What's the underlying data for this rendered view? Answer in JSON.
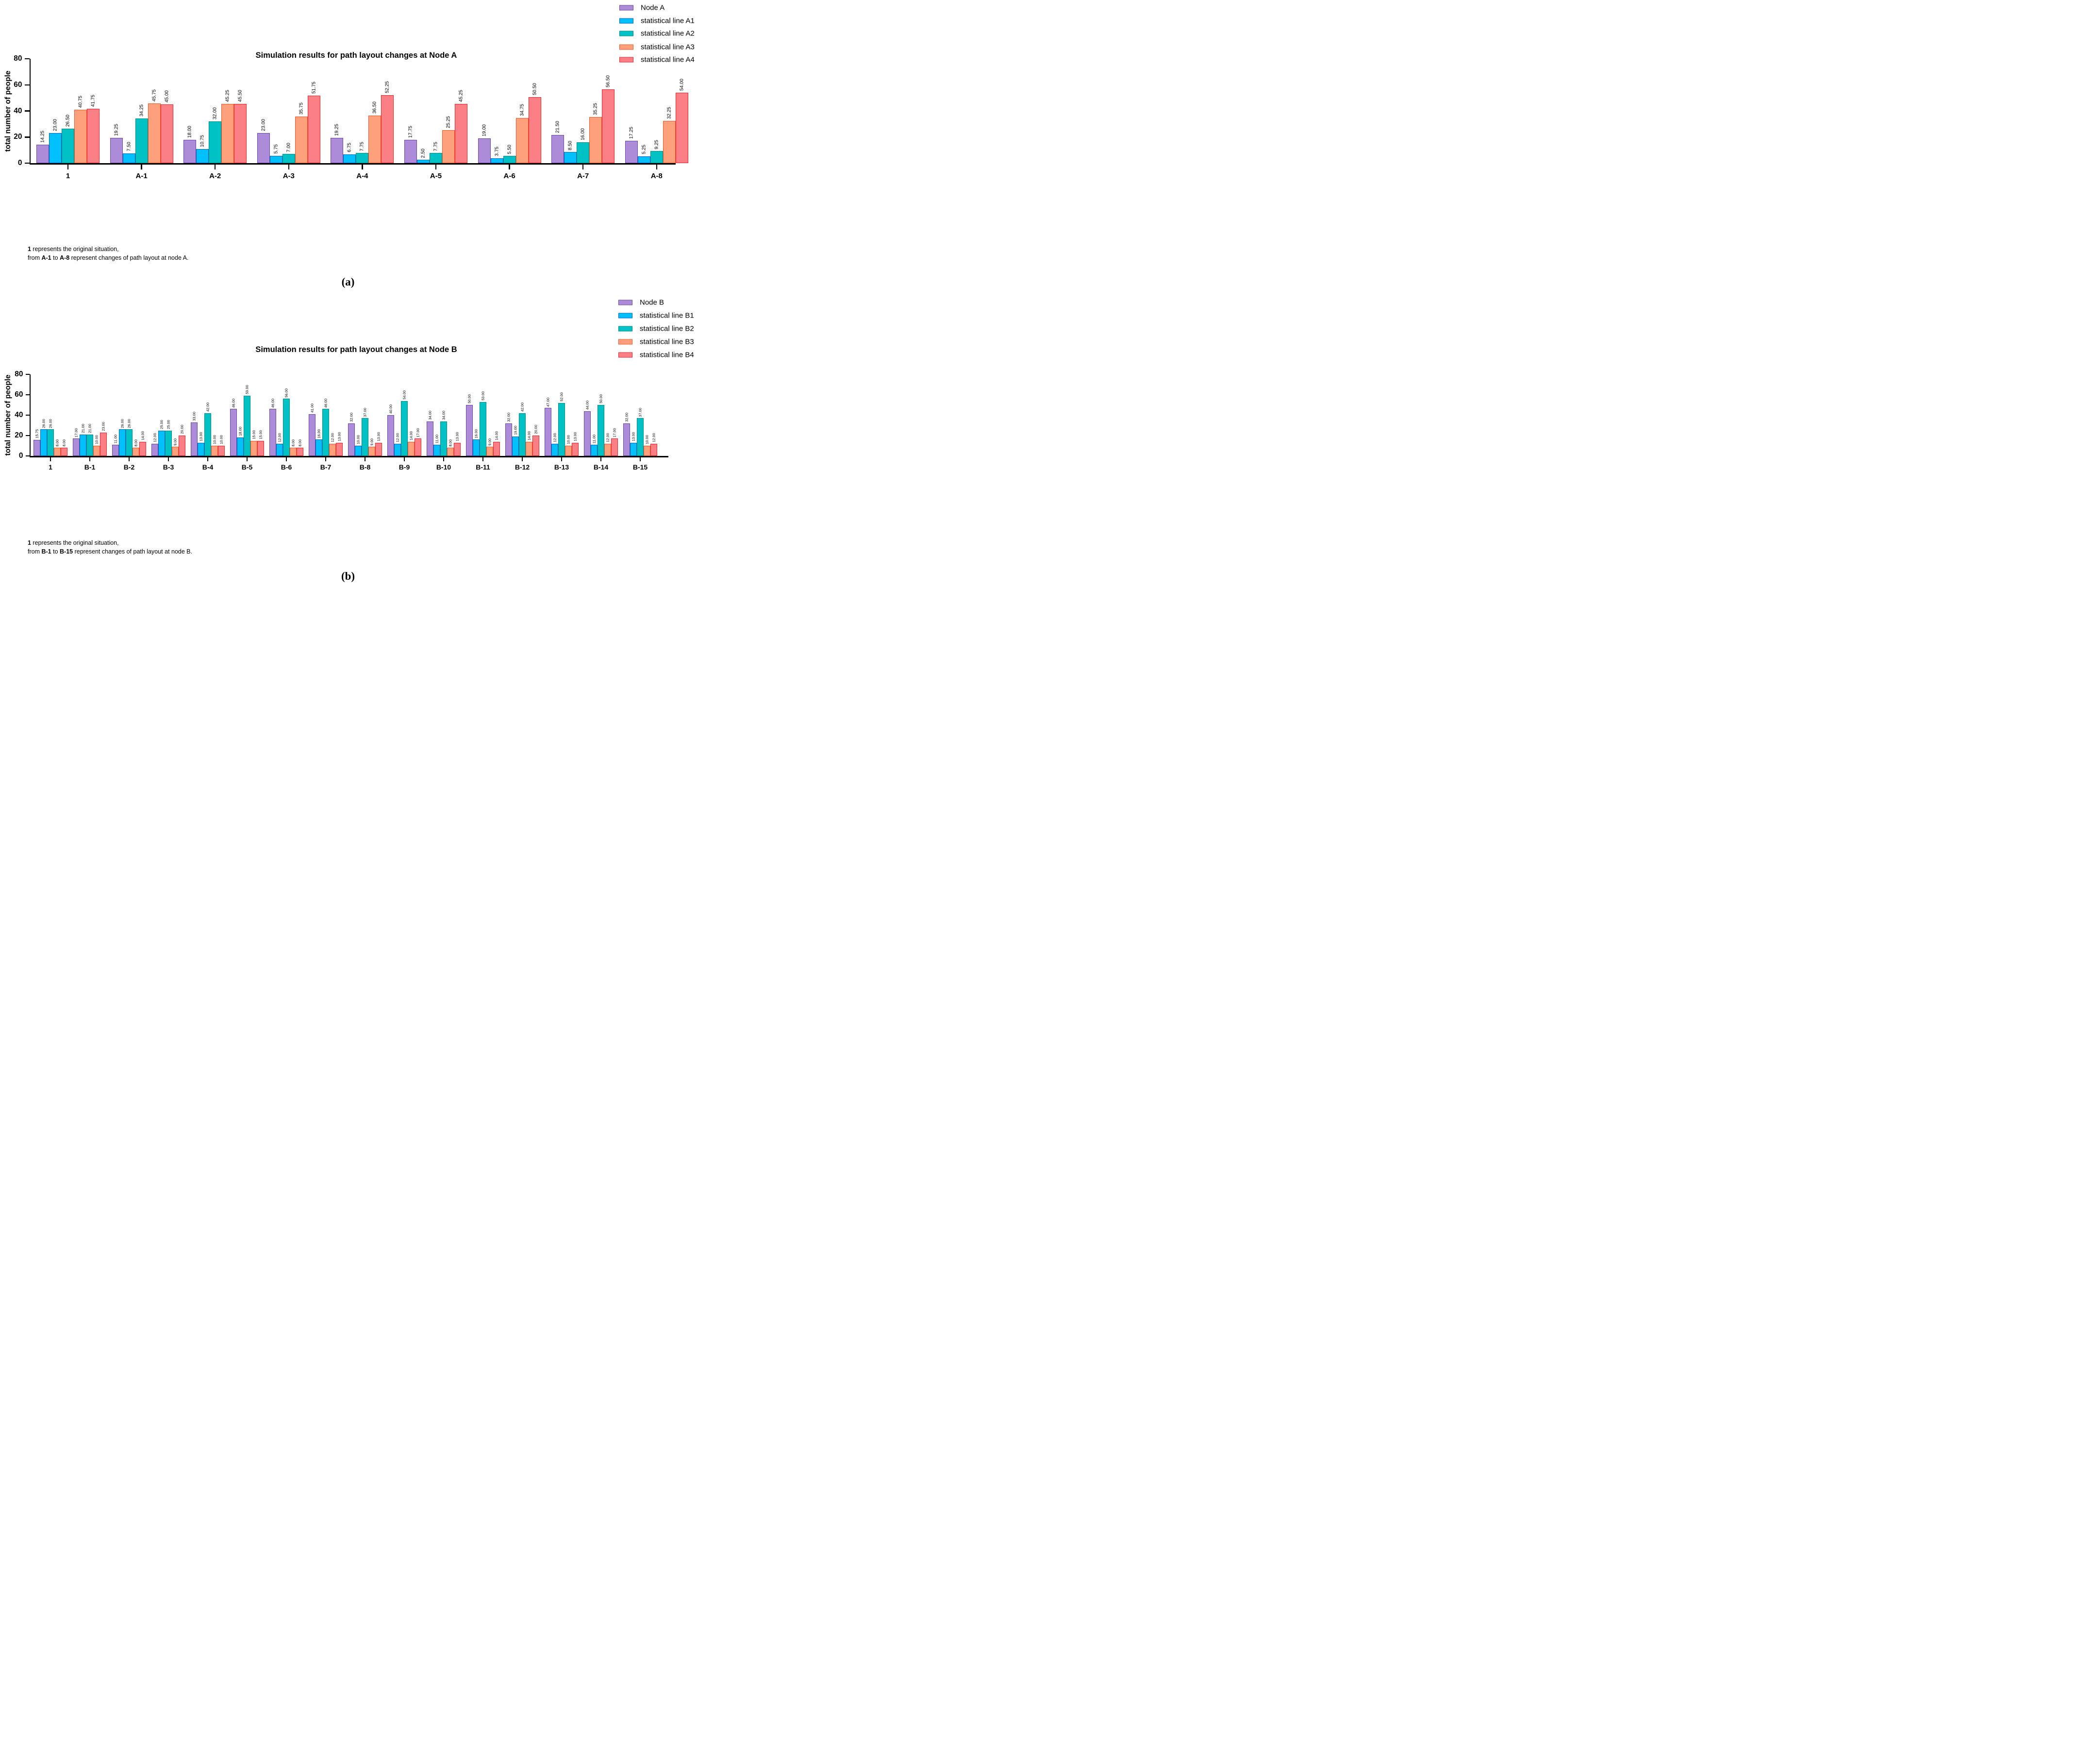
{
  "page": {
    "background": "#ffffff",
    "panel_letters": [
      "(a)",
      "(b)"
    ]
  },
  "chart_data": [
    {
      "panel_label": "(a)",
      "type": "bar",
      "title": "Simulation results for path layout changes at Node A",
      "ylabel": "total number of people",
      "ylim": [
        0,
        80
      ],
      "yticks": [
        0,
        20,
        40,
        60,
        80
      ],
      "grid": false,
      "legend_position": "top-right",
      "value_label_style": "rotated 90deg, two decimals, above each bar",
      "categories": [
        "1",
        "A-1",
        "A-2",
        "A-3",
        "A-4",
        "A-5",
        "A-6",
        "A-7",
        "A-8"
      ],
      "series": [
        {
          "name": "Node A",
          "fill": "#ac8cd8",
          "border": "#6c46a4",
          "values": [
            14.25,
            19.25,
            18.0,
            23.0,
            19.25,
            17.75,
            19.0,
            21.5,
            17.25
          ]
        },
        {
          "name": "statistical line A1",
          "fill": "#00c0fb",
          "border": "#0b64c8",
          "values": [
            23.0,
            7.5,
            10.75,
            5.75,
            6.75,
            2.5,
            3.75,
            8.5,
            5.25
          ]
        },
        {
          "name": "statistical line A2",
          "fill": "#00c2c5",
          "border": "#008e91",
          "values": [
            26.5,
            34.25,
            32.0,
            7.0,
            7.75,
            7.75,
            5.5,
            16.0,
            9.25
          ]
        },
        {
          "name": "statistical line A3",
          "fill": "#ffa07d",
          "border": "#f05a28",
          "values": [
            40.75,
            45.75,
            45.25,
            35.75,
            36.5,
            25.25,
            34.75,
            35.25,
            32.25
          ]
        },
        {
          "name": "statistical line A4",
          "fill": "#fb8086",
          "border": "#f5232e",
          "values": [
            41.75,
            45.0,
            45.5,
            51.75,
            52.25,
            45.25,
            50.5,
            56.5,
            54.0
          ]
        }
      ],
      "caption_lines": [
        [
          {
            "text": "1",
            "bold": true
          },
          {
            "text": " represents the original situation,",
            "bold": false
          }
        ],
        [
          {
            "text": "from ",
            "bold": false
          },
          {
            "text": "A-1",
            "bold": true
          },
          {
            "text": " to ",
            "bold": false
          },
          {
            "text": "A-8",
            "bold": true
          },
          {
            "text": " represent changes of path layout at node A.",
            "bold": false
          }
        ]
      ]
    },
    {
      "panel_label": "(b)",
      "type": "bar",
      "title": "Simulation results for path layout changes at Node B",
      "ylabel": "total number of people",
      "ylim": [
        0,
        80
      ],
      "yticks": [
        0,
        20,
        40,
        60,
        80
      ],
      "grid": false,
      "legend_position": "top-right",
      "value_label_style": "rotated 90deg, two decimals, above each bar",
      "categories": [
        "1",
        "B-1",
        "B-2",
        "B-3",
        "B-4",
        "B-5",
        "B-6",
        "B-7",
        "B-8",
        "B-9",
        "B-10",
        "B-11",
        "B-12",
        "B-13",
        "B-14",
        "B-15"
      ],
      "series": [
        {
          "name": "Node B",
          "fill": "#ac8cd8",
          "border": "#6c46a4",
          "values": [
            15.75,
            17.0,
            11.0,
            12.0,
            33.0,
            46.0,
            46.0,
            41.0,
            32.0,
            40.0,
            34.0,
            50.0,
            32.0,
            47.0,
            44.0,
            32.0
          ]
        },
        {
          "name": "statistical line B1",
          "fill": "#00c0fb",
          "border": "#0b64c8",
          "values": [
            26.0,
            21.0,
            26.0,
            25.0,
            13.0,
            18.0,
            12.0,
            16.0,
            10.0,
            12.0,
            11.0,
            16.0,
            19.0,
            12.0,
            11.0,
            13.0
          ]
        },
        {
          "name": "statistical line B2",
          "fill": "#00c2c5",
          "border": "#008e91",
          "values": [
            26.0,
            21.0,
            26.0,
            25.0,
            42.0,
            59.0,
            56.0,
            46.0,
            37.0,
            54.0,
            34.0,
            53.0,
            42.0,
            52.0,
            50.0,
            37.0
          ]
        },
        {
          "name": "statistical line B3",
          "fill": "#ffa07d",
          "border": "#f05a28",
          "values": [
            8.0,
            10.0,
            8.0,
            9.0,
            10.0,
            15.0,
            8.0,
            12.0,
            9.0,
            14.0,
            8.0,
            9.0,
            14.0,
            10.0,
            12.0,
            10.0
          ]
        },
        {
          "name": "statistical line B4",
          "fill": "#fb8086",
          "border": "#f5232e",
          "values": [
            8.0,
            23.0,
            14.0,
            20.0,
            10.0,
            15.0,
            8.0,
            13.0,
            13.0,
            17.0,
            13.0,
            14.0,
            20.0,
            13.0,
            17.0,
            12.0
          ]
        }
      ],
      "caption_lines": [
        [
          {
            "text": "1",
            "bold": true
          },
          {
            "text": " represents the original situation,",
            "bold": false
          }
        ],
        [
          {
            "text": "from ",
            "bold": false
          },
          {
            "text": "B-1",
            "bold": true
          },
          {
            "text": " to ",
            "bold": false
          },
          {
            "text": "B-15",
            "bold": true
          },
          {
            "text": " represent changes of path layout at node B.",
            "bold": false
          }
        ]
      ]
    }
  ]
}
